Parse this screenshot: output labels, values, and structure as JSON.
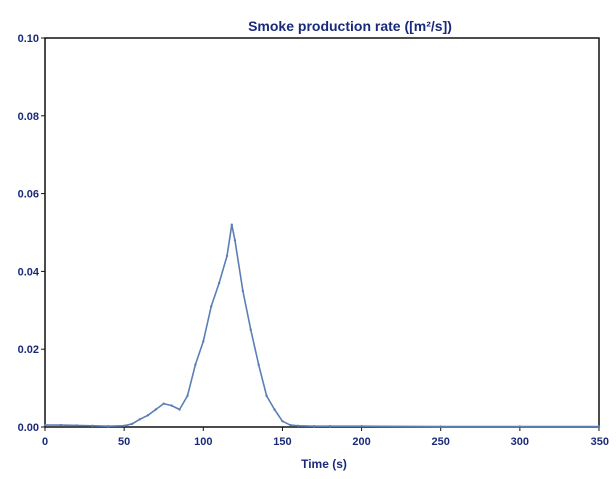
{
  "chart_data": {
    "type": "line",
    "title": "Smoke production rate ([m²/s])",
    "xlabel": "Time (s)",
    "ylabel": "",
    "xlim": [
      0,
      350
    ],
    "ylim": [
      0,
      0.1
    ],
    "x_ticks": [
      0,
      50,
      100,
      150,
      200,
      250,
      300,
      350
    ],
    "y_ticks": [
      0.0,
      0.02,
      0.04,
      0.06,
      0.08,
      0.1
    ],
    "x_tick_labels": [
      "0",
      "50",
      "100",
      "150",
      "200",
      "250",
      "300",
      "350"
    ],
    "y_tick_labels": [
      "0.00",
      "0.02",
      "0.04",
      "0.06",
      "0.08",
      "0.10"
    ],
    "grid": false,
    "legend": "none",
    "line_color": "#5b7fb5",
    "axis_color": "#111111",
    "series": [
      {
        "name": "",
        "x": [
          0,
          10,
          20,
          30,
          40,
          50,
          55,
          60,
          65,
          70,
          75,
          80,
          85,
          90,
          95,
          100,
          105,
          110,
          115,
          118,
          120,
          125,
          130,
          135,
          140,
          145,
          150,
          155,
          160,
          170,
          180,
          200,
          250,
          300,
          350
        ],
        "y": [
          0.0005,
          0.0005,
          0.0004,
          0.0003,
          0.0002,
          0.0003,
          0.0008,
          0.002,
          0.003,
          0.0045,
          0.006,
          0.0055,
          0.0045,
          0.008,
          0.016,
          0.022,
          0.031,
          0.037,
          0.044,
          0.052,
          0.048,
          0.035,
          0.025,
          0.016,
          0.008,
          0.0045,
          0.0015,
          0.0005,
          0.0003,
          0.0002,
          0.0002,
          0.0002,
          0.0001,
          0.0001,
          0.0001
        ]
      }
    ]
  }
}
